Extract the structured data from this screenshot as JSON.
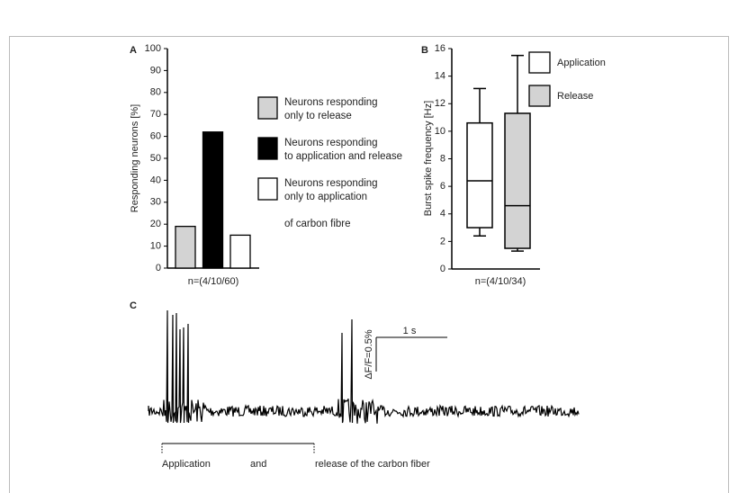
{
  "chart_data": [
    {
      "type": "bar",
      "panel": "A",
      "ylabel": "Responding neurons [%]",
      "xlabel": "n=(4/10/60)",
      "categories": [
        null
      ],
      "series": [
        {
          "name": "Neurons responding\nonly to release",
          "color": "#d3d3d3",
          "values": [
            19
          ]
        },
        {
          "name": "Neurons responding\nto application and  release",
          "color": "#000000",
          "values": [
            62
          ]
        },
        {
          "name": "Neurons responding\nonly to application\n\nof carbon fibre",
          "color": "#ffffff",
          "values": [
            15
          ]
        }
      ],
      "ylim": [
        0,
        100
      ],
      "yticks": [
        0,
        10,
        20,
        30,
        40,
        50,
        60,
        70,
        80,
        90,
        100
      ]
    },
    {
      "type": "box",
      "panel": "B",
      "ylabel": "Burst spike frequency [Hz]",
      "xlabel": "n=(4/10/34)",
      "series": [
        {
          "name": "Application",
          "color": "#ffffff",
          "low": 2.4,
          "q1": 3.0,
          "median": 6.4,
          "q3": 10.6,
          "high": 13.1
        },
        {
          "name": "Release",
          "color": "#d3d3d3",
          "low": 1.3,
          "q1": 1.5,
          "median": 4.6,
          "q3": 11.3,
          "high": 15.5
        }
      ],
      "ylim": [
        0,
        16
      ],
      "yticks": [
        0,
        2,
        4,
        6,
        8,
        10,
        12,
        14,
        16
      ]
    }
  ],
  "panel_c": {
    "panel": "C",
    "time_scale": "1 s",
    "amplitude_scale": "ΔF/F=0.5%",
    "annotations": [
      "Application",
      "and",
      "release of the carbon fiber"
    ]
  }
}
